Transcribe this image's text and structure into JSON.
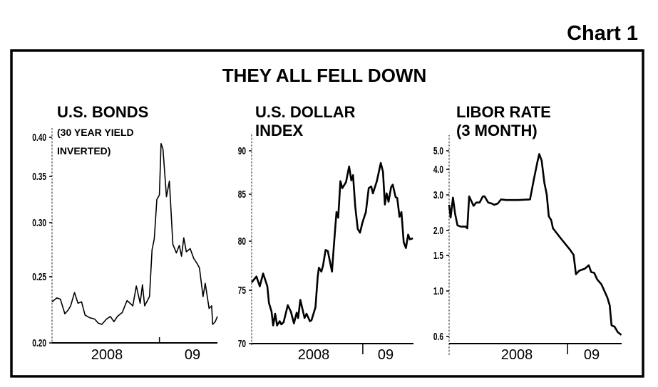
{
  "chart_label": "Chart 1",
  "title": "THEY ALL FELL DOWN",
  "chart_data": [
    {
      "type": "line",
      "title": "U.S. BONDS",
      "subtitle": [
        "(30 YEAR YIELD",
        "INVERTED)"
      ],
      "yticks": [
        "0.40",
        "0.35",
        "0.30",
        "0.25",
        "0.20"
      ],
      "ylim": [
        0.2,
        0.4
      ],
      "xlim": [
        "2008-02-01",
        "2009-07-01"
      ],
      "xtick_labels": [
        "2008",
        "09"
      ],
      "year_divider": "2009-01-01",
      "grid": false,
      "color": "#000000",
      "points": [
        [
          "2008-02-01",
          0.231
        ],
        [
          "2008-02-16",
          0.234
        ],
        [
          "2008-02-27",
          0.233
        ],
        [
          "2008-03-12",
          0.222
        ],
        [
          "2008-03-23",
          0.225
        ],
        [
          "2008-03-30",
          0.228
        ],
        [
          "2008-04-11",
          0.238
        ],
        [
          "2008-04-22",
          0.23
        ],
        [
          "2008-05-03",
          0.231
        ],
        [
          "2008-05-14",
          0.221
        ],
        [
          "2008-05-29",
          0.219
        ],
        [
          "2008-06-13",
          0.218
        ],
        [
          "2008-06-24",
          0.215
        ],
        [
          "2008-07-05",
          0.214
        ],
        [
          "2008-07-20",
          0.218
        ],
        [
          "2008-08-01",
          0.22
        ],
        [
          "2008-08-12",
          0.216
        ],
        [
          "2008-08-23",
          0.22
        ],
        [
          "2008-09-07",
          0.223
        ],
        [
          "2008-09-22",
          0.232
        ],
        [
          "2008-10-10",
          0.228
        ],
        [
          "2008-10-21",
          0.243
        ],
        [
          "2008-11-02",
          0.23
        ],
        [
          "2008-11-09",
          0.244
        ],
        [
          "2008-11-16",
          0.228
        ],
        [
          "2008-12-01",
          0.235
        ],
        [
          "2008-12-09",
          0.275
        ],
        [
          "2008-12-16",
          0.285
        ],
        [
          "2008-12-24",
          0.325
        ],
        [
          "2009-01-01",
          0.33
        ],
        [
          "2009-01-06",
          0.392
        ],
        [
          "2009-01-12",
          0.385
        ],
        [
          "2009-01-23",
          0.328
        ],
        [
          "2009-02-01",
          0.345
        ],
        [
          "2009-02-12",
          0.28
        ],
        [
          "2009-02-23",
          0.272
        ],
        [
          "2009-03-04",
          0.279
        ],
        [
          "2009-03-11",
          0.269
        ],
        [
          "2009-03-18",
          0.286
        ],
        [
          "2009-03-26",
          0.273
        ],
        [
          "2009-04-07",
          0.276
        ],
        [
          "2009-04-18",
          0.267
        ],
        [
          "2009-04-29",
          0.262
        ],
        [
          "2009-05-06",
          0.258
        ],
        [
          "2009-05-17",
          0.235
        ],
        [
          "2009-05-24",
          0.245
        ],
        [
          "2009-06-05",
          0.226
        ],
        [
          "2009-06-13",
          0.228
        ],
        [
          "2009-06-16",
          0.214
        ],
        [
          "2009-06-24",
          0.216
        ],
        [
          "2009-07-01",
          0.22
        ]
      ]
    },
    {
      "type": "line",
      "title": "U.S. DOLLAR",
      "subtitle": [
        "INDEX"
      ],
      "yticks": [
        "90",
        "85",
        "80",
        "75",
        "70"
      ],
      "ylim": [
        70,
        90
      ],
      "xlim": [
        "2007-12-01",
        "2009-07-01"
      ],
      "xtick_labels": [
        "2008",
        "09"
      ],
      "year_divider": "2009-01-01",
      "grid": false,
      "color": "#000000",
      "points": [
        [
          "2007-12-01",
          75.8
        ],
        [
          "2007-12-18",
          76.4
        ],
        [
          "2007-12-30",
          75.4
        ],
        [
          "2008-01-11",
          76.7
        ],
        [
          "2008-01-26",
          75.4
        ],
        [
          "2008-02-01",
          73.8
        ],
        [
          "2008-02-10",
          73.0
        ],
        [
          "2008-02-16",
          71.7
        ],
        [
          "2008-02-23",
          72.8
        ],
        [
          "2008-03-01",
          71.7
        ],
        [
          "2008-03-10",
          72.1
        ],
        [
          "2008-03-16",
          71.8
        ],
        [
          "2008-03-24",
          72.0
        ],
        [
          "2008-04-08",
          73.6
        ],
        [
          "2008-04-19",
          73.0
        ],
        [
          "2008-04-30",
          71.9
        ],
        [
          "2008-05-10",
          72.9
        ],
        [
          "2008-05-15",
          72.4
        ],
        [
          "2008-05-23",
          74.1
        ],
        [
          "2008-06-07",
          72.4
        ],
        [
          "2008-06-14",
          72.8
        ],
        [
          "2008-06-26",
          72.1
        ],
        [
          "2008-07-02",
          72.2
        ],
        [
          "2008-07-16",
          73.4
        ],
        [
          "2008-07-24",
          76.4
        ],
        [
          "2008-07-28",
          77.3
        ],
        [
          "2008-08-06",
          76.9
        ],
        [
          "2008-08-12",
          77.5
        ],
        [
          "2008-08-21",
          79.1
        ],
        [
          "2008-08-29",
          79.0
        ],
        [
          "2008-09-13",
          76.9
        ],
        [
          "2008-09-20",
          79.7
        ],
        [
          "2008-09-29",
          83.1
        ],
        [
          "2008-10-05",
          82.5
        ],
        [
          "2008-10-13",
          86.5
        ],
        [
          "2008-10-20",
          85.7
        ],
        [
          "2008-11-02",
          86.4
        ],
        [
          "2008-11-13",
          88.2
        ],
        [
          "2008-11-21",
          86.6
        ],
        [
          "2008-11-27",
          87.2
        ],
        [
          "2008-12-05",
          83.7
        ],
        [
          "2008-12-14",
          81.3
        ],
        [
          "2008-12-22",
          80.9
        ],
        [
          "2008-12-31",
          82.0
        ],
        [
          "2009-01-12",
          83.1
        ],
        [
          "2009-01-22",
          85.7
        ],
        [
          "2009-01-31",
          85.9
        ],
        [
          "2009-02-06",
          85.1
        ],
        [
          "2009-02-20",
          86.5
        ],
        [
          "2009-03-06",
          88.6
        ],
        [
          "2009-03-14",
          87.6
        ],
        [
          "2009-03-21",
          83.9
        ],
        [
          "2009-03-27",
          85.1
        ],
        [
          "2009-04-03",
          84.2
        ],
        [
          "2009-04-12",
          85.8
        ],
        [
          "2009-04-18",
          86.1
        ],
        [
          "2009-04-28",
          84.7
        ],
        [
          "2009-05-04",
          84.6
        ],
        [
          "2009-05-12",
          82.6
        ],
        [
          "2009-05-19",
          83.1
        ],
        [
          "2009-05-27",
          79.9
        ],
        [
          "2009-06-04",
          79.3
        ],
        [
          "2009-06-12",
          80.7
        ],
        [
          "2009-06-18",
          80.2
        ],
        [
          "2009-06-29",
          80.3
        ]
      ]
    },
    {
      "type": "line",
      "title": "LIBOR RATE",
      "subtitle": [
        "(3 MONTH)"
      ],
      "yticks": [
        "5.0",
        "4.0",
        "3.0",
        "2.0",
        "1.5",
        "1.0",
        "0.6"
      ],
      "yscale": "log",
      "xlim": [
        "2007-12-01",
        "2009-07-01"
      ],
      "xtick_labels": [
        "2008",
        "09"
      ],
      "year_divider": "2009-01-01",
      "grid": false,
      "color": "#000000",
      "points": [
        [
          "2007-12-01",
          2.68
        ],
        [
          "2007-12-06",
          2.32
        ],
        [
          "2007-12-14",
          2.91
        ],
        [
          "2007-12-21",
          2.42
        ],
        [
          "2007-12-29",
          2.12
        ],
        [
          "2008-01-10",
          2.09
        ],
        [
          "2008-01-26",
          2.09
        ],
        [
          "2008-01-31",
          2.05
        ],
        [
          "2008-02-06",
          2.95
        ],
        [
          "2008-02-21",
          2.65
        ],
        [
          "2008-03-01",
          2.75
        ],
        [
          "2008-03-12",
          2.75
        ],
        [
          "2008-03-23",
          2.95
        ],
        [
          "2008-03-29",
          2.95
        ],
        [
          "2008-04-10",
          2.75
        ],
        [
          "2008-04-22",
          2.72
        ],
        [
          "2008-04-30",
          2.68
        ],
        [
          "2008-05-12",
          2.72
        ],
        [
          "2008-05-23",
          2.85
        ],
        [
          "2008-06-09",
          2.83
        ],
        [
          "2008-07-19",
          2.83
        ],
        [
          "2008-08-28",
          2.85
        ],
        [
          "2008-09-10",
          3.58
        ],
        [
          "2008-09-22",
          4.38
        ],
        [
          "2008-09-28",
          4.81
        ],
        [
          "2008-10-06",
          4.44
        ],
        [
          "2008-10-15",
          3.44
        ],
        [
          "2008-10-23",
          3.02
        ],
        [
          "2008-10-30",
          2.35
        ],
        [
          "2008-11-07",
          2.25
        ],
        [
          "2008-11-13",
          2.05
        ],
        [
          "2008-12-10",
          1.82
        ],
        [
          "2009-01-08",
          1.61
        ],
        [
          "2009-01-21",
          1.51
        ],
        [
          "2009-01-29",
          1.21
        ],
        [
          "2009-02-09",
          1.26
        ],
        [
          "2009-02-28",
          1.29
        ],
        [
          "2009-03-13",
          1.34
        ],
        [
          "2009-03-21",
          1.24
        ],
        [
          "2009-03-31",
          1.23
        ],
        [
          "2009-04-10",
          1.14
        ],
        [
          "2009-04-24",
          1.08
        ],
        [
          "2009-05-03",
          1.01
        ],
        [
          "2009-05-14",
          0.93
        ],
        [
          "2009-05-22",
          0.85
        ],
        [
          "2009-05-28",
          0.68
        ],
        [
          "2009-06-07",
          0.67
        ],
        [
          "2009-06-18",
          0.63
        ],
        [
          "2009-06-30",
          0.61
        ]
      ]
    }
  ]
}
